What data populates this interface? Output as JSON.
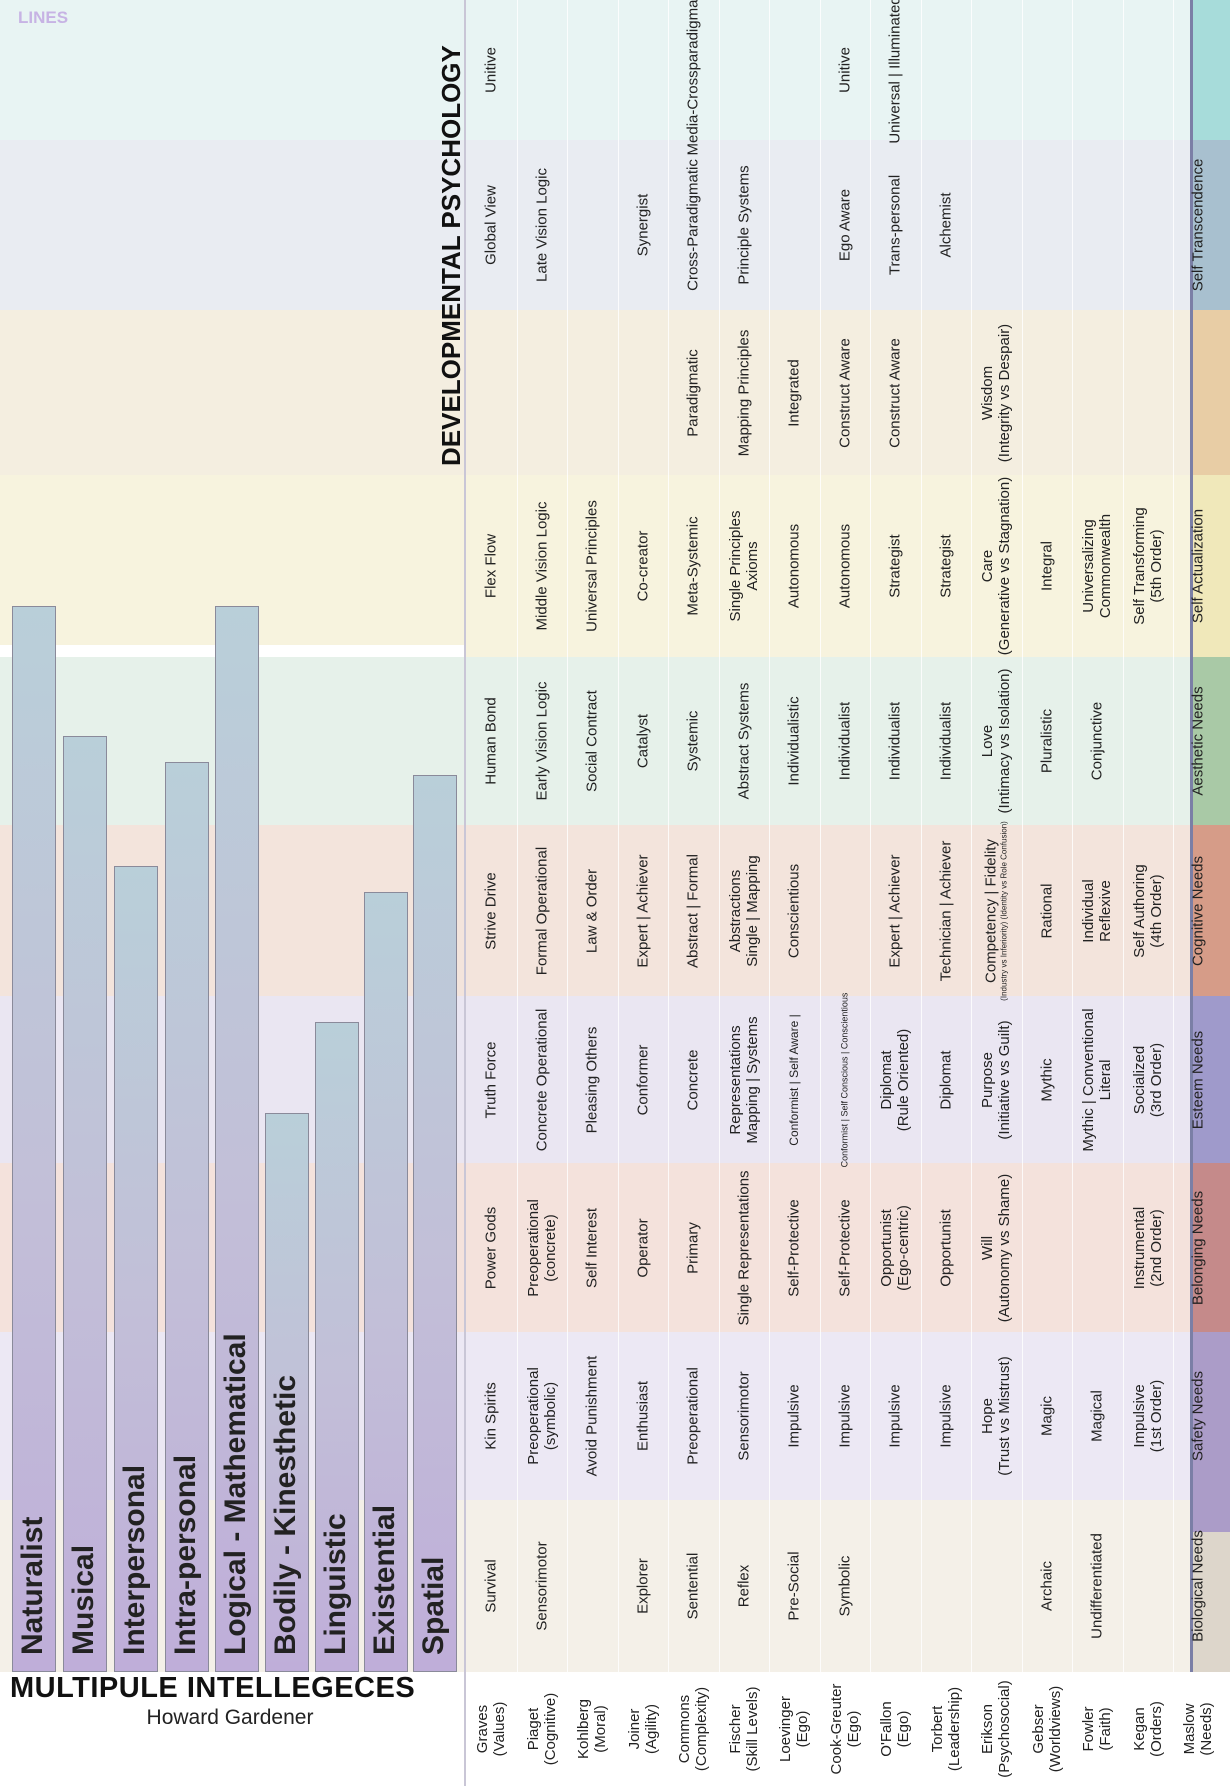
{
  "lines_label": "LINES",
  "dev_title": "DEVELOPMENTAL PSYCHOLOGY",
  "mi_title": "MULTIPULE INTELLEGECES",
  "mi_author": "Howard Gardener",
  "colors": {
    "band_tint": [
      "#f4f0e8",
      "#ece8f4",
      "#f4e2dc",
      "#eae6f2",
      "#f3e4dc",
      "#e6f1ea",
      "#f7f3de",
      "#f4eee0",
      "#e9ecf2",
      "#e8f4f3"
    ],
    "stripe": [
      "#ddd6cb",
      "#ab9cc8",
      "#c58a8a",
      "#9f9acb",
      "#d69c88",
      "#a9c9a6",
      "#f0e8ba",
      "#e8cda5",
      "#a8c0cf",
      "#a7dcda"
    ],
    "bar_top": "#b9cfd9",
    "bar_bottom": "#bfaed9"
  },
  "intelligences": [
    {
      "name": "Naturalist",
      "level": 0.82
    },
    {
      "name": "Musical",
      "level": 0.72
    },
    {
      "name": "Interpersonal",
      "level": 0.62
    },
    {
      "name": "Intra-personal",
      "level": 0.7
    },
    {
      "name": "Logical - Mathematical",
      "level": 0.82
    },
    {
      "name": "Bodily - Kinesthetic",
      "level": 0.43
    },
    {
      "name": "Linguistic",
      "level": 0.5
    },
    {
      "name": "Existential",
      "level": 0.6
    },
    {
      "name": "Spatial",
      "level": 0.69
    }
  ],
  "rows": [
    {
      "name": [
        "Graves",
        "(Values)"
      ],
      "cells": [
        [
          "Survival"
        ],
        [
          "Kin Spirits"
        ],
        [
          "Power Gods"
        ],
        [
          "Truth Force"
        ],
        [
          "Strive Drive"
        ],
        [
          "Human Bond"
        ],
        [
          "Flex Flow"
        ],
        [],
        [
          "Global View"
        ],
        [
          "Unitive"
        ]
      ]
    },
    {
      "name": [
        "Piaget",
        "(Cognitive)"
      ],
      "cells": [
        [
          "Sensorimotor"
        ],
        [
          "Preoperational",
          "(symbolic)"
        ],
        [
          "Preoperational",
          "(concrete)"
        ],
        [
          "Concrete Operational"
        ],
        [
          "Formal Operational"
        ],
        [
          "Early Vision Logic"
        ],
        [
          "Middle Vision Logic"
        ],
        [],
        [
          "Late Vision Logic"
        ],
        []
      ]
    },
    {
      "name": [
        "Kohlberg",
        "(Moral)"
      ],
      "cells": [
        [],
        [
          "Avoid  Punishment"
        ],
        [
          "Self Interest"
        ],
        [
          "Pleasing Others"
        ],
        [
          "Law & Order"
        ],
        [
          "Social Contract"
        ],
        [
          "Universal Principles"
        ],
        [],
        [],
        []
      ]
    },
    {
      "name": [
        "Joiner",
        "(Agility)"
      ],
      "cells": [
        [
          "Explorer"
        ],
        [
          "Enthusiast"
        ],
        [
          "Operator"
        ],
        [
          "Conformer"
        ],
        [
          "Expert  |  Achiever"
        ],
        [
          "Catalyst"
        ],
        [
          "Co-creator"
        ],
        [],
        [
          "Synergist"
        ],
        []
      ]
    },
    {
      "name": [
        "Commons",
        "(Complexity)"
      ],
      "cells": [
        [
          "Sentential"
        ],
        [
          "Preoperational"
        ],
        [
          "Primary"
        ],
        [
          "Concrete"
        ],
        [
          "Abstract  |  Formal"
        ],
        [
          "Systemic"
        ],
        [
          "Meta-Systemic"
        ],
        [
          "Paradigmatic"
        ],
        [
          "Cross-Paradigmatic"
        ],
        [
          "Media-Crossparadigmatic"
        ]
      ]
    },
    {
      "name": [
        "Fischer",
        "(Skill Levels)"
      ],
      "cells": [
        [
          "Reflex"
        ],
        [
          "Sensorimotor"
        ],
        [
          "Single Representations"
        ],
        [
          "Representations",
          "Mapping  |  Systems"
        ],
        [
          "Abstractions",
          "Single  |  Mapping"
        ],
        [
          "Abstract Systems"
        ],
        [
          "Single Principles",
          "Axioms"
        ],
        [
          "Mapping Principles"
        ],
        [
          "Principle Systems"
        ],
        []
      ]
    },
    {
      "name": [
        "Loevinger",
        "(Ego)"
      ],
      "cells": [
        [
          "Pre-Social"
        ],
        [
          "Impulsive"
        ],
        [
          "Self-Protective"
        ],
        [
          "Conformist  |  Self Aware  |"
        ],
        [
          "Conscientious"
        ],
        [
          "Individualistic"
        ],
        [
          "Autonomous"
        ],
        [
          "Integrated"
        ],
        [],
        []
      ]
    },
    {
      "name": [
        "Cook-Greuter",
        "(Ego)"
      ],
      "cells": [
        [
          "Symbolic"
        ],
        [
          "Impulsive"
        ],
        [
          "Self-Protective"
        ],
        [
          "Conformist  |  Self Conscious  |  Conscientious"
        ],
        [],
        [
          "Individualist"
        ],
        [
          "Autonomous"
        ],
        [
          "Construct Aware"
        ],
        [
          "Ego Aware"
        ],
        [
          "Unitive"
        ]
      ]
    },
    {
      "name": [
        "O'Fallon",
        "(Ego)"
      ],
      "cells": [
        [],
        [
          "Impulsive"
        ],
        [
          "Opportunist",
          "(Ego-centric)"
        ],
        [
          "Diplomat",
          "(Rule Oriented)"
        ],
        [
          "Expert  |  Achiever"
        ],
        [
          "Individualist"
        ],
        [
          "Strategist"
        ],
        [
          "Construct Aware"
        ],
        [
          "Trans-personal"
        ],
        [
          "Universal | Illuminated"
        ]
      ]
    },
    {
      "name": [
        "Torbert",
        "(Leadership)"
      ],
      "cells": [
        [],
        [
          "Impulsive"
        ],
        [
          "Opportunist"
        ],
        [
          "Diplomat"
        ],
        [
          "Technician  |  Achiever"
        ],
        [
          "Individualist"
        ],
        [
          "Strategist"
        ],
        [],
        [
          "Alchemist"
        ],
        []
      ]
    },
    {
      "name": [
        "Erikson",
        "(Psychosocial)"
      ],
      "cells": [
        [],
        [
          "Hope",
          "(Trust vs Mistrust)"
        ],
        [
          "Will",
          "(Autonomy vs Shame)"
        ],
        [
          "Purpose",
          "(Initiative vs Guilt)"
        ],
        [
          "Competency | Fidelity",
          "(Industry vs Inferiority)  (Identity vs Role Confusion)"
        ],
        [
          "Love",
          "(Intimacy vs Isolation)"
        ],
        [
          "Care",
          "(Generative vs Stagnation)"
        ],
        [
          "Wisdom",
          "(Integrity vs Despair)"
        ],
        [],
        []
      ]
    },
    {
      "name": [
        "Gebser",
        "(Worldviews)"
      ],
      "cells": [
        [
          "Archaic"
        ],
        [
          "Magic"
        ],
        [],
        [
          "Mythic"
        ],
        [
          "Rational"
        ],
        [
          "Pluralistic"
        ],
        [
          "Integral"
        ],
        [],
        [],
        []
      ]
    },
    {
      "name": [
        "Fowler",
        "(Faith)"
      ],
      "cells": [
        [
          "Undifferentiated"
        ],
        [
          "Magical"
        ],
        [],
        [
          "Mythic  |  Conventional",
          "Literal"
        ],
        [
          "Individual",
          "Reflexive"
        ],
        [
          "Conjunctive"
        ],
        [
          "Universalizing",
          "Commonwealth"
        ],
        [],
        [],
        []
      ]
    },
    {
      "name": [
        "Kegan",
        "(Orders)"
      ],
      "cells": [
        [],
        [
          "Impulsive",
          "(1st Order)"
        ],
        [
          "Instrumental",
          "(2nd Order)"
        ],
        [
          "Socialized",
          "(3rd Order)"
        ],
        [
          "Self Authoring",
          "(4th Order)"
        ],
        [],
        [
          "Self Transforming",
          "(5th Order)"
        ],
        [],
        [],
        []
      ]
    },
    {
      "name": [
        "Maslow",
        "(Needs)"
      ],
      "cells": [
        [
          "Biological Needs"
        ],
        [
          "Safety Needs"
        ],
        [
          "Belonging Needs"
        ],
        [
          "Esteem Needs"
        ],
        [
          "Cognitive Needs"
        ],
        [
          "Aesthetic Needs"
        ],
        [
          "Self Actualization"
        ],
        [],
        [
          "Self Transcendence"
        ],
        []
      ]
    }
  ]
}
